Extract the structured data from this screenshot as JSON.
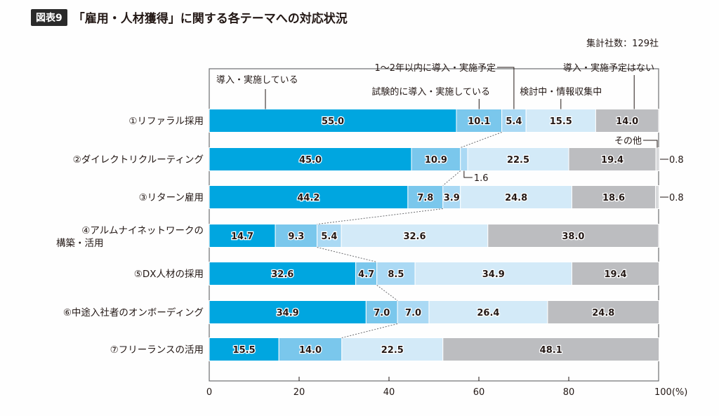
{
  "header": {
    "badge": "図表9",
    "title": "「雇用・人材獲得」に関する各テーマへの対応状況",
    "sample_note": "集計社数：129社"
  },
  "colors": {
    "implemented": "#00a6e0",
    "trial": "#7ac7ec",
    "planned": "#aad9f4",
    "considering": "#d3eaf8",
    "no_plan": "#bcbdc0",
    "other": "#d9dadc"
  },
  "chart_data": {
    "type": "bar",
    "orientation": "horizontal",
    "stacked": true,
    "title": "「雇用・人材獲得」に関する各テーマへの対応状況",
    "xlabel": "(%)",
    "xlim": [
      0,
      100
    ],
    "xticks": [
      "0",
      "20",
      "40",
      "60",
      "80",
      "100"
    ],
    "x_unit": "(%)",
    "categories": [
      "①リファラル採用",
      "②ダイレクトリクルーティング",
      "③リターン雇用",
      "④アルムナイネットワークの構築・活用",
      "⑤DX人材の採用",
      "⑥中途入社者のオンボーディング",
      "⑦フリーランスの活用"
    ],
    "category_lines": [
      [
        "①リファラル採用"
      ],
      [
        "②ダイレクトリクルーティング"
      ],
      [
        "③リターン雇用"
      ],
      [
        "④アルムナイネットワークの",
        "構築・活用"
      ],
      [
        "⑤DX人材の採用"
      ],
      [
        "⑥中途入社者のオンボーディング"
      ],
      [
        "⑦フリーランスの活用"
      ]
    ],
    "series": [
      {
        "key": "implemented",
        "name": "導入・実施している",
        "values": [
          55.0,
          45.0,
          44.2,
          14.7,
          32.6,
          34.9,
          15.5
        ]
      },
      {
        "key": "trial",
        "name": "試験的に導入・実施している",
        "values": [
          10.1,
          10.9,
          7.8,
          9.3,
          4.7,
          7.0,
          14.0
        ]
      },
      {
        "key": "planned",
        "name": "1～2年以内に導入・実施予定",
        "values": [
          5.4,
          1.6,
          3.9,
          5.4,
          8.5,
          7.0,
          0
        ]
      },
      {
        "key": "considering",
        "name": "検討中・情報収集中",
        "values": [
          15.5,
          22.5,
          24.8,
          32.6,
          34.9,
          26.4,
          22.5
        ]
      },
      {
        "key": "no_plan",
        "name": "導入・実施予定はない",
        "values": [
          14.0,
          19.4,
          18.6,
          38.0,
          19.4,
          24.8,
          48.1
        ]
      },
      {
        "key": "other",
        "name": "その他",
        "values": [
          0,
          0.8,
          0.8,
          0,
          0,
          0,
          0
        ]
      }
    ],
    "value_labels": [
      [
        "55.0",
        "10.1",
        "5.4",
        "15.5",
        "14.0",
        ""
      ],
      [
        "45.0",
        "10.9",
        "1.6",
        "22.5",
        "19.4",
        "0.8"
      ],
      [
        "44.2",
        "7.8",
        "3.9",
        "24.8",
        "18.6",
        "0.8"
      ],
      [
        "14.7",
        "9.3",
        "5.4",
        "32.6",
        "38.0",
        ""
      ],
      [
        "32.6",
        "4.7",
        "8.5",
        "34.9",
        "19.4",
        ""
      ],
      [
        "34.9",
        "7.0",
        "7.0",
        "26.4",
        "24.8",
        ""
      ],
      [
        "15.5",
        "14.0",
        "",
        "22.5",
        "48.1",
        ""
      ]
    ],
    "legend_placement": "top (callout labels)",
    "grid": false
  }
}
